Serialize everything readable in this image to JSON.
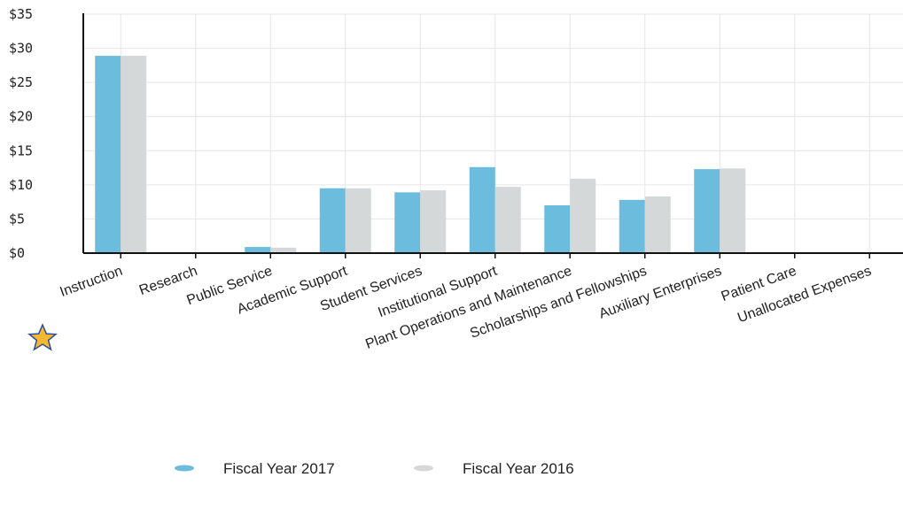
{
  "chart_data": {
    "type": "bar",
    "categories": [
      "Instruction",
      "Research",
      "Public Service",
      "Academic Support",
      "Student Services",
      "Institutional Support",
      "Plant Operations and Maintenance",
      "Scholarships and Fellowships",
      "Auxiliary Enterprises",
      "Patient Care",
      "Unallocated Expenses"
    ],
    "series": [
      {
        "name": "Fiscal Year 2017",
        "color": "#6bbcdd",
        "values": [
          28.9,
          0,
          0.9,
          9.5,
          8.9,
          12.6,
          7.0,
          7.8,
          12.3,
          0,
          0
        ]
      },
      {
        "name": "Fiscal Year 2016",
        "color": "#d5d8d8",
        "values": [
          28.9,
          0,
          0.8,
          9.5,
          9.2,
          9.7,
          10.9,
          8.3,
          12.4,
          0,
          0
        ]
      }
    ],
    "yticks": [
      "$0",
      "$5",
      "$10",
      "$15",
      "$20",
      "$25",
      "$30",
      "$35"
    ],
    "ylim": [
      0,
      35
    ],
    "grid": true,
    "legend_position": "bottom",
    "marker_icon": "star-icon",
    "axis_color": "#111111",
    "grid_color": "#e6e6e6"
  }
}
